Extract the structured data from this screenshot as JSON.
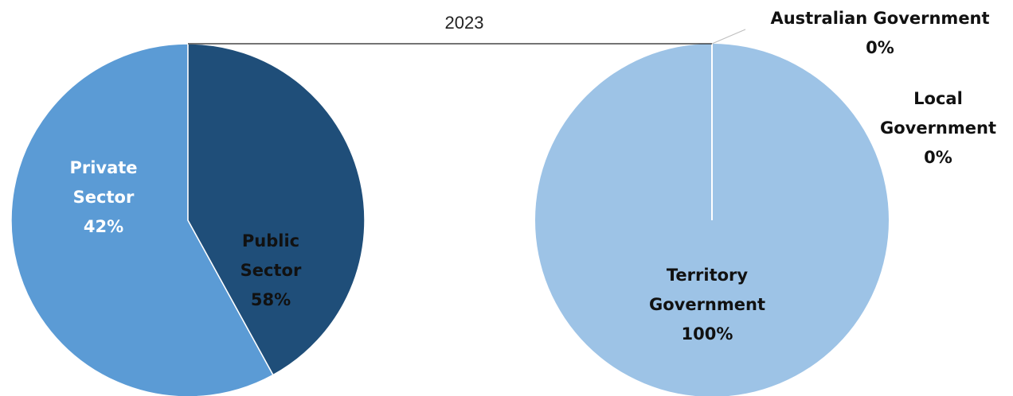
{
  "chart_data": {
    "type": "pie",
    "title": "2023",
    "pies": [
      {
        "slices": [
          {
            "name": "Public Sector",
            "lines": [
              "Public",
              "Sector"
            ],
            "pct_label": "58%",
            "value": 58,
            "color": "#5B9BD5",
            "label_color": "#111111"
          },
          {
            "name": "Private Sector",
            "lines": [
              "Private",
              "Sector"
            ],
            "pct_label": "42%",
            "value": 42,
            "color": "#1F4E79",
            "label_color": "#ffffff"
          }
        ]
      },
      {
        "slices": [
          {
            "name": "Australian Government",
            "lines": [
              "Australian Government"
            ],
            "pct_label": "0%",
            "value": 0,
            "color": "#9DC3E6",
            "label_color": "#111111"
          },
          {
            "name": "Local Government",
            "lines": [
              "Local",
              "Government"
            ],
            "pct_label": "0%",
            "value": 0,
            "color": "#9DC3E6",
            "label_color": "#111111"
          },
          {
            "name": "Territory Government",
            "lines": [
              "Territory",
              "Government"
            ],
            "pct_label": "100%",
            "value": 100,
            "color": "#9DC3E6",
            "label_color": "#111111"
          }
        ]
      }
    ],
    "connector_color": "#222222"
  }
}
